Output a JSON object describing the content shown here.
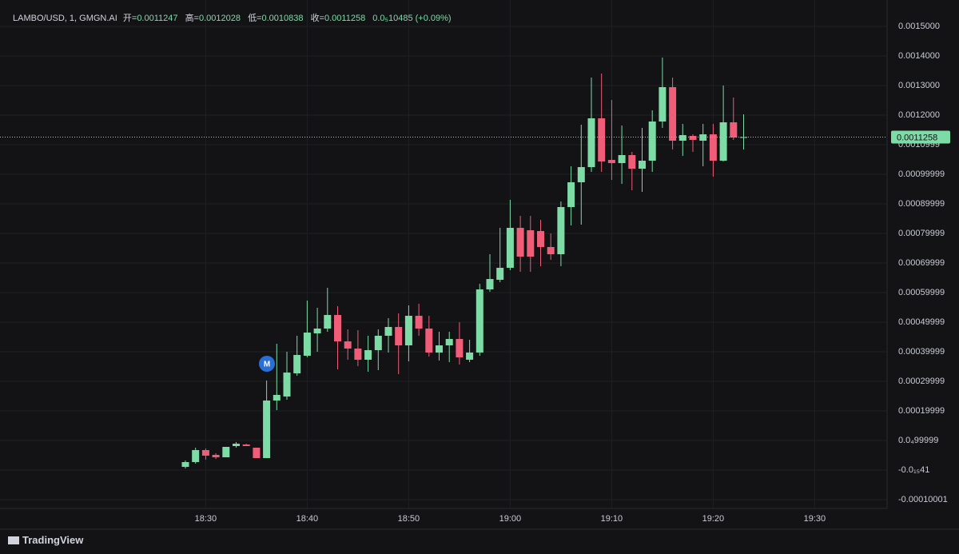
{
  "chart_data": {
    "type": "candlestick",
    "title": "LAMBO/USD, 1, GMGN.AI",
    "open_label": "开=",
    "high_label": "高=",
    "low_label": "低=",
    "close_label": "收=",
    "change": "0.0₅10485 (+0.09%)",
    "up_color": "#7ddca6",
    "down_color": "#ef5d78",
    "grid": true,
    "categories": [
      null,
      null,
      "18:30",
      null,
      null,
      null,
      null,
      null,
      null,
      null,
      null,
      null,
      "18:40",
      null,
      null,
      null,
      null,
      null,
      null,
      null,
      null,
      null,
      "18:50",
      null,
      null,
      null,
      null,
      null,
      null,
      null,
      null,
      null,
      "19:00",
      null,
      null,
      null,
      null,
      null,
      null,
      null,
      null,
      null,
      "19:10",
      null,
      null,
      null,
      null,
      null,
      null,
      null,
      null,
      null,
      "19:20",
      null,
      null,
      null,
      null,
      null,
      null,
      null,
      null,
      null,
      "19:30"
    ],
    "open": [
      1.08e-05,
      2.7e-05,
      6.76e-05,
      5.14e-05,
      4.32e-05,
      8.11e-05,
      8.65e-05,
      7.57e-05,
      4.05e-05,
      0.0002351,
      0.0002486,
      0.000327,
      0.0003865,
      0.0004622,
      0.0004784,
      0.0005243,
      0.0004351,
      0.0004108,
      0.000373,
      0.0004054,
      0.0004541,
      0.0004838,
      0.0004216,
      0.0005216,
      0.0004784,
      0.0003973,
      0.0004216,
      0.0004432,
      0.000373,
      0.0003973,
      0.0006108,
      0.0006432,
      0.0006838,
      0.0008189,
      0.0008108,
      0.0008081,
      0.0007541,
      0.0007297,
      0.0008892,
      0.000973,
      0.0010243,
      0.0011892,
      0.0010486,
      0.0010378,
      0.0010649,
      0.0010189,
      0.0010459,
      0.0011784,
      0.0012946,
      0.0011135,
      0.0011297,
      0.0011135,
      0.0011351,
      0.0010459,
      0.0011757,
      0.0011247,
      null,
      null,
      null,
      null,
      null,
      null,
      null
    ],
    "high": [
      3.24e-05,
      7.57e-05,
      7.3e-05,
      5.68e-05,
      7.84e-05,
      9.46e-05,
      8.92e-05,
      7.57e-05,
      0.0003027,
      0.000427,
      0.0004,
      0.0004541,
      0.000573,
      0.0005486,
      0.0006162,
      0.0005541,
      0.0004757,
      0.000473,
      0.0004541,
      0.0004757,
      0.0005135,
      0.0005297,
      0.0005568,
      0.0005622,
      0.0005216,
      0.0004676,
      0.0004676,
      0.0005,
      0.0004405,
      0.0006297,
      0.0007297,
      0.0008189,
      0.0009135,
      0.0008595,
      0.0008595,
      0.0008459,
      0.0008,
      0.0009081,
      0.001027,
      0.0011676,
      0.001327,
      0.0013405,
      0.0012514,
      0.0011649,
      0.0010757,
      0.0011568,
      0.0012162,
      0.0013946,
      0.001327,
      0.0011703,
      0.0011351,
      0.0011703,
      0.0011703,
      0.0013,
      0.0012595,
      0.0012028,
      null,
      null,
      null,
      null,
      null,
      null,
      null
    ],
    "low": [
      5.4e-06,
      2.16e-05,
      3.51e-05,
      3.78e-05,
      4.32e-05,
      7.57e-05,
      8.11e-05,
      4.05e-05,
      4.05e-05,
      0.0002027,
      0.0002378,
      0.0003189,
      0.0003811,
      0.0004,
      0.0004676,
      0.0003405,
      0.000373,
      0.0003514,
      0.0003324,
      0.0003378,
      0.0003973,
      0.0003243,
      0.0003676,
      0.0004541,
      0.0003838,
      0.0003703,
      0.0003649,
      0.0003568,
      0.0003649,
      0.0003865,
      0.0006027,
      0.0006351,
      0.0006757,
      0.0006703,
      0.0006703,
      0.0006892,
      0.0007108,
      0.0006892,
      0.000827,
      0.0008297,
      0.0010081,
      0.0010081,
      0.0009811,
      0.0009676,
      0.0009459,
      0.0009405,
      0.0010081,
      0.0011568,
      0.0010838,
      0.0010622,
      0.0010757,
      0.001027,
      0.0009919,
      0.0010432,
      0.0011162,
      0.0010838,
      null,
      null,
      null,
      null,
      null,
      null,
      null
    ],
    "close": [
      2.7e-05,
      6.76e-05,
      4.87e-05,
      4.32e-05,
      7.84e-05,
      8.92e-05,
      8.11e-05,
      4.05e-05,
      0.0002351,
      0.0002541,
      0.0003297,
      0.0003892,
      0.0004649,
      0.0004784,
      0.0005243,
      0.0004351,
      0.0004108,
      0.000373,
      0.0004054,
      0.0004541,
      0.0004838,
      0.0004216,
      0.0005216,
      0.0004784,
      0.0003973,
      0.0004216,
      0.0004432,
      0.0003811,
      0.0003973,
      0.0006108,
      0.0006459,
      0.0006838,
      0.0008189,
      0.0007216,
      0.0007216,
      0.0007541,
      0.0007297,
      0.0008892,
      0.000973,
      0.0010243,
      0.0011892,
      0.0010432,
      0.0010378,
      0.0010649,
      0.0010189,
      0.0010459,
      0.0011784,
      0.0012946,
      0.0011135,
      0.0011324,
      0.0011162,
      0.0011351,
      0.0010459,
      0.0011757,
      0.0011243,
      0.0011258,
      null,
      null,
      null,
      null,
      null,
      null,
      null
    ],
    "ylim": [
      -0.000127,
      0.0015892
    ],
    "yticks": [
      {
        "value": 0.0015,
        "label": "0.0015000"
      },
      {
        "value": 0.0014,
        "label": "0.0014000"
      },
      {
        "value": 0.0013,
        "label": "0.0013000"
      },
      {
        "value": 0.0012,
        "label": "0.0012000"
      },
      0.0010999,
      0.00099999,
      0.00089999,
      0.00079999,
      0.00069999,
      0.00059999,
      0.00049999,
      0.00039999,
      0.00029999,
      0.00019999,
      {
        "value": 9.9999e-05,
        "label": "0.0₄99999"
      },
      {
        "value": -4.1e-16,
        "label": "-0.0₁₅41"
      },
      -0.00010001
    ]
  },
  "branding": "TradingView"
}
